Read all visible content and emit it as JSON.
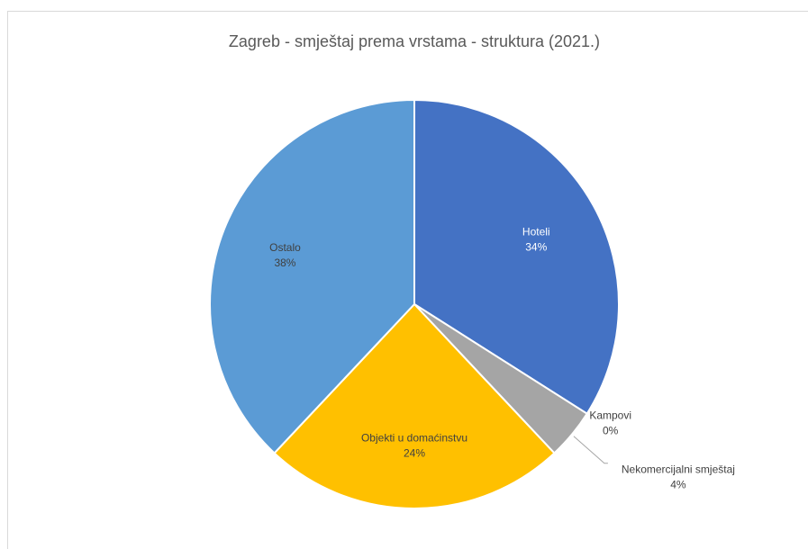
{
  "chart_data": {
    "type": "pie",
    "title": "Zagreb - smještaj prema vrstama - struktura (2021.)",
    "categories": [
      "Hoteli",
      "Kampovi",
      "Nekomercijalni smještaj",
      "Objekti u domaćinstvu",
      "Ostalo"
    ],
    "values": [
      34,
      0,
      4,
      24,
      38
    ],
    "value_labels": [
      "34%",
      "0%",
      "4%",
      "24%",
      "38%"
    ],
    "colors": [
      "#4472c4",
      "#ed7d31",
      "#a5a5a5",
      "#ffc000",
      "#5b9bd5"
    ]
  }
}
